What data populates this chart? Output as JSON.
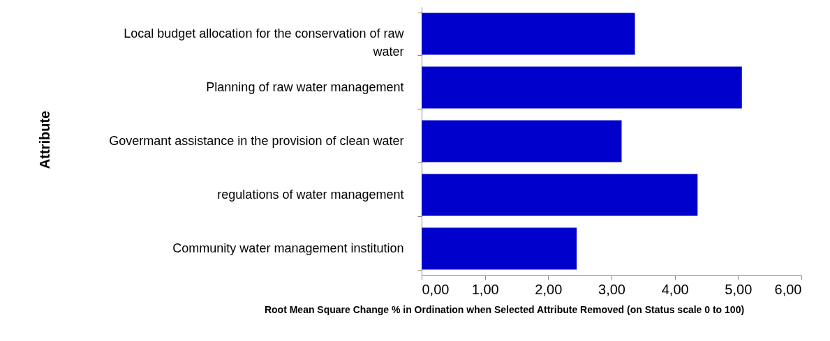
{
  "chart_data": {
    "type": "bar",
    "orientation": "horizontal",
    "xlabel": "Root Mean Square Change % in Ordination when Selected Attribute Removed (on Status scale 0 to 100)",
    "ylabel": "Attribute",
    "categories": [
      "Local budget allocation for the conservation of raw water",
      "Planning of raw water management",
      "Govermant assistance in the provision of clean water",
      "regulations of water management",
      "Community water management institution"
    ],
    "values": [
      3.37,
      5.06,
      3.16,
      4.36,
      2.45
    ],
    "color": "#0000cc",
    "xlim": [
      0,
      6
    ],
    "xticks": [
      {
        "value": 0,
        "label": "0,00"
      },
      {
        "value": 1,
        "label": "1,00"
      },
      {
        "value": 2,
        "label": "2,00"
      },
      {
        "value": 3,
        "label": "3,00"
      },
      {
        "value": 4,
        "label": "4,00"
      },
      {
        "value": 5,
        "label": "5,00"
      },
      {
        "value": 6,
        "label": "6,00"
      }
    ],
    "grid": false
  }
}
